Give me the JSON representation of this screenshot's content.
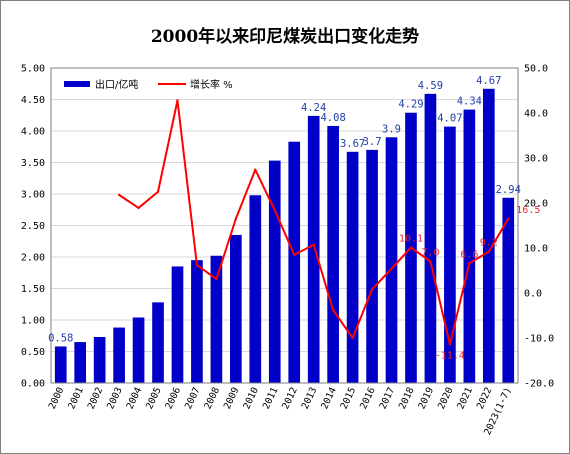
{
  "chart_data": {
    "type": "bar",
    "title": "2000年以来印尼煤炭出口变化走势",
    "categories": [
      "2000",
      "2001",
      "2002",
      "2003",
      "2004",
      "2005",
      "2006",
      "2007",
      "2008",
      "2009",
      "2010",
      "2011",
      "2012",
      "2013",
      "2014",
      "2015",
      "2016",
      "2017",
      "2018",
      "2019",
      "2020",
      "2021",
      "2022",
      "2023(1-7)"
    ],
    "left_axis": {
      "ylim": [
        0,
        5
      ],
      "ticks": [
        "0.00",
        "0.50",
        "1.00",
        "1.50",
        "2.00",
        "2.50",
        "3.00",
        "3.50",
        "4.00",
        "4.50",
        "5.00"
      ],
      "tick_values": [
        0,
        0.5,
        1,
        1.5,
        2,
        2.5,
        3,
        3.5,
        4,
        4.5,
        5
      ]
    },
    "right_axis": {
      "ylim": [
        -20,
        50
      ],
      "ticks": [
        "-20.0",
        "-10.0",
        "0.0",
        "10.0",
        "20.0",
        "30.0",
        "40.0",
        "50.0"
      ],
      "tick_values": [
        -20,
        -10,
        0,
        10,
        20,
        30,
        40,
        50
      ]
    },
    "grid": true,
    "legend_position": "top-left",
    "series": [
      {
        "name": "出口/亿吨",
        "type": "bar",
        "axis": "left",
        "color": "#0000c8",
        "values": [
          0.58,
          0.65,
          0.73,
          0.88,
          1.04,
          1.28,
          1.85,
          1.95,
          2.02,
          2.35,
          2.98,
          3.53,
          3.83,
          4.24,
          4.08,
          3.67,
          3.7,
          3.9,
          4.29,
          4.59,
          4.07,
          4.34,
          4.67,
          2.94
        ],
        "labels": {
          "0": "0.58",
          "13": "4.24",
          "14": "4.08",
          "15": "3.67",
          "16": "3.7",
          "17": "3.9",
          "18": "4.29",
          "19": "4.59",
          "20": "4.07",
          "21": "4.34",
          "22": "4.67",
          "23": "2.94"
        }
      },
      {
        "name": "增长率 %",
        "type": "line",
        "axis": "right",
        "color": "#ff0000",
        "values": [
          null,
          null,
          null,
          21.8,
          18.9,
          22.5,
          42.8,
          6.2,
          3.1,
          16.5,
          27.4,
          18.4,
          8.5,
          10.7,
          -3.8,
          -10.0,
          0.8,
          5.4,
          10.1,
          7.0,
          -11.4,
          6.6,
          9.2,
          16.5
        ],
        "labels": {
          "18": "10.1",
          "19": "7.0",
          "20": "-11.4",
          "21": "6.6",
          "22": "9.2",
          "23": "16.5"
        }
      }
    ]
  }
}
